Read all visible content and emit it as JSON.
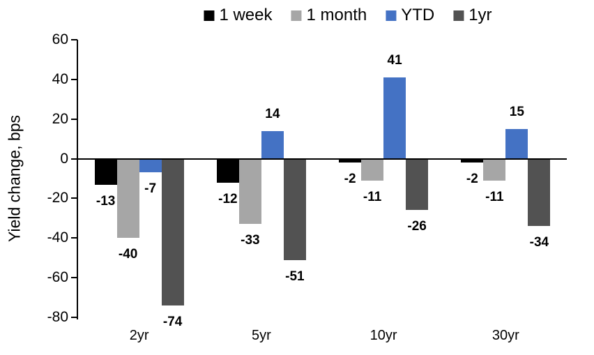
{
  "chart_data": {
    "type": "bar",
    "title": "",
    "ylabel": "Yield change, bps",
    "xlabel": "",
    "categories": [
      "2yr",
      "5yr",
      "10yr",
      "30yr"
    ],
    "series": [
      {
        "name": "1 week",
        "color": "#000000",
        "values": [
          -13,
          -12,
          -2,
          -2
        ]
      },
      {
        "name": "1 month",
        "color": "#a6a6a6",
        "values": [
          -40,
          -33,
          -11,
          -11
        ]
      },
      {
        "name": "YTD",
        "color": "#4472c4",
        "values": [
          -7,
          14,
          41,
          15
        ]
      },
      {
        "name": "1yr",
        "color": "#525252",
        "values": [
          -74,
          -51,
          -26,
          -34
        ]
      }
    ],
    "ylim": [
      -80,
      60
    ],
    "yticks": [
      60,
      40,
      20,
      0,
      -20,
      -40,
      -60,
      -80
    ],
    "grid": false,
    "legend_position": "top",
    "data_labels": true,
    "baseline_color": "#000000"
  }
}
